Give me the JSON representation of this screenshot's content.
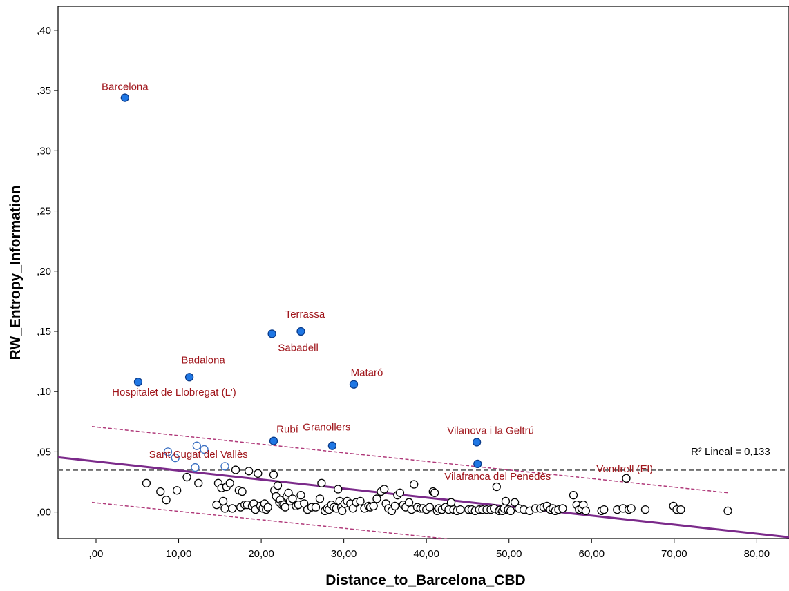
{
  "chart_data": {
    "type": "scatter",
    "xlabel": "Distance_to_Barcelona_CBD",
    "ylabel": "RW_Entropy_Information",
    "xlim": [
      -4.6,
      83.9
    ],
    "ylim": [
      -0.022,
      0.42
    ],
    "x_ticks": [
      {
        "value": 0,
        "label": ",00"
      },
      {
        "value": 10,
        "label": "10,00"
      },
      {
        "value": 20,
        "label": "20,00"
      },
      {
        "value": 30,
        "label": "30,00"
      },
      {
        "value": 40,
        "label": "40,00"
      },
      {
        "value": 50,
        "label": "50,00"
      },
      {
        "value": 60,
        "label": "60,00"
      },
      {
        "value": 70,
        "label": "70,00"
      },
      {
        "value": 80,
        "label": "80,00"
      }
    ],
    "y_ticks": [
      {
        "value": 0.0,
        "label": ",00"
      },
      {
        "value": 0.05,
        "label": ",05"
      },
      {
        "value": 0.1,
        "label": ",10"
      },
      {
        "value": 0.15,
        "label": ",15"
      },
      {
        "value": 0.2,
        "label": ",20"
      },
      {
        "value": 0.25,
        "label": ",25"
      },
      {
        "value": 0.3,
        "label": ",30"
      },
      {
        "value": 0.35,
        "label": ",35"
      },
      {
        "value": 0.4,
        "label": ",40"
      }
    ],
    "grid": false,
    "highlighted_points": [
      {
        "name": "Barcelona",
        "x": 3.5,
        "y": 0.344
      },
      {
        "name": "Hospitalet de Llobregat (L')",
        "x": 5.1,
        "y": 0.108
      },
      {
        "name": "Badalona",
        "x": 11.3,
        "y": 0.112
      },
      {
        "name": "Sabadell",
        "x": 21.3,
        "y": 0.148
      },
      {
        "name": "Terrassa",
        "x": 24.8,
        "y": 0.15
      },
      {
        "name": "Mataró",
        "x": 31.2,
        "y": 0.106
      },
      {
        "name": "Rubí",
        "x": 21.5,
        "y": 0.059
      },
      {
        "name": "Granollers",
        "x": 28.6,
        "y": 0.055
      },
      {
        "name": "Vilanova i la Geltrú",
        "x": 46.1,
        "y": 0.058
      },
      {
        "name": "Vilafranca del Penedès",
        "x": 46.2,
        "y": 0.04
      }
    ],
    "secondary_points": [
      {
        "x": 8.7,
        "y": 0.05
      },
      {
        "x": 9.6,
        "y": 0.045
      },
      {
        "x": 12.0,
        "y": 0.037
      },
      {
        "x": 12.2,
        "y": 0.055
      },
      {
        "x": 13.1,
        "y": 0.052
      },
      {
        "x": 15.6,
        "y": 0.038
      }
    ],
    "secondary_labels": [
      {
        "text": "Sant Cugat del Vallès",
        "x": 12.4,
        "y": 0.045
      },
      {
        "text": "Vendrell (El)",
        "x": 64.0,
        "y": 0.033
      }
    ],
    "other_points": [
      [
        6.1,
        0.024
      ],
      [
        7.8,
        0.017
      ],
      [
        8.5,
        0.01
      ],
      [
        9.8,
        0.018
      ],
      [
        11.0,
        0.029
      ],
      [
        12.4,
        0.024
      ],
      [
        14.6,
        0.006
      ],
      [
        14.8,
        0.024
      ],
      [
        15.2,
        0.02
      ],
      [
        15.4,
        0.009
      ],
      [
        15.6,
        0.003
      ],
      [
        15.8,
        0.021
      ],
      [
        16.2,
        0.024
      ],
      [
        16.5,
        0.003
      ],
      [
        16.9,
        0.035
      ],
      [
        17.3,
        0.018
      ],
      [
        17.5,
        0.004
      ],
      [
        17.7,
        0.017
      ],
      [
        18.0,
        0.006
      ],
      [
        18.3,
        0.006
      ],
      [
        18.5,
        0.034
      ],
      [
        18.9,
        0.005
      ],
      [
        19.1,
        0.007
      ],
      [
        19.3,
        0.002
      ],
      [
        19.6,
        0.032
      ],
      [
        19.9,
        0.005
      ],
      [
        20.2,
        0.003
      ],
      [
        20.4,
        0.007
      ],
      [
        20.6,
        0.002
      ],
      [
        20.8,
        0.004
      ],
      [
        21.5,
        0.031
      ],
      [
        21.6,
        0.018
      ],
      [
        21.8,
        0.013
      ],
      [
        22.0,
        0.022
      ],
      [
        22.2,
        0.008
      ],
      [
        22.3,
        0.01
      ],
      [
        22.5,
        0.006
      ],
      [
        22.7,
        0.006
      ],
      [
        22.9,
        0.004
      ],
      [
        23.1,
        0.013
      ],
      [
        23.3,
        0.016
      ],
      [
        23.5,
        0.009
      ],
      [
        23.8,
        0.011
      ],
      [
        24.2,
        0.005
      ],
      [
        24.5,
        0.006
      ],
      [
        24.8,
        0.014
      ],
      [
        25.2,
        0.007
      ],
      [
        25.6,
        0.002
      ],
      [
        26.1,
        0.004
      ],
      [
        26.6,
        0.004
      ],
      [
        27.1,
        0.011
      ],
      [
        27.3,
        0.024
      ],
      [
        27.7,
        0.001
      ],
      [
        28.0,
        0.003
      ],
      [
        28.2,
        0.002
      ],
      [
        28.5,
        0.006
      ],
      [
        28.8,
        0.004
      ],
      [
        29.1,
        0.003
      ],
      [
        29.3,
        0.019
      ],
      [
        29.5,
        0.009
      ],
      [
        29.7,
        0.004
      ],
      [
        29.8,
        0.001
      ],
      [
        30.1,
        0.007
      ],
      [
        30.4,
        0.009
      ],
      [
        30.8,
        0.007
      ],
      [
        31.1,
        0.003
      ],
      [
        31.5,
        0.008
      ],
      [
        32.0,
        0.009
      ],
      [
        32.5,
        0.003
      ],
      [
        33.0,
        0.005
      ],
      [
        33.2,
        0.004
      ],
      [
        33.6,
        0.005
      ],
      [
        34.0,
        0.011
      ],
      [
        34.5,
        0.017
      ],
      [
        34.9,
        0.019
      ],
      [
        35.1,
        0.007
      ],
      [
        35.4,
        0.003
      ],
      [
        35.8,
        0.001
      ],
      [
        36.2,
        0.005
      ],
      [
        36.5,
        0.014
      ],
      [
        36.8,
        0.016
      ],
      [
        37.2,
        0.006
      ],
      [
        37.5,
        0.004
      ],
      [
        37.9,
        0.008
      ],
      [
        38.2,
        0.002
      ],
      [
        38.5,
        0.023
      ],
      [
        38.9,
        0.004
      ],
      [
        39.3,
        0.003
      ],
      [
        39.6,
        0.003
      ],
      [
        40.0,
        0.002
      ],
      [
        40.4,
        0.004
      ],
      [
        40.8,
        0.017
      ],
      [
        41.0,
        0.016
      ],
      [
        41.3,
        0.001
      ],
      [
        41.5,
        0.003
      ],
      [
        41.9,
        0.002
      ],
      [
        42.3,
        0.004
      ],
      [
        42.7,
        0.002
      ],
      [
        43.0,
        0.008
      ],
      [
        43.3,
        0.002
      ],
      [
        43.7,
        0.001
      ],
      [
        44.1,
        0.002
      ],
      [
        45.1,
        0.002
      ],
      [
        45.5,
        0.002
      ],
      [
        45.9,
        0.001
      ],
      [
        46.4,
        0.002
      ],
      [
        46.8,
        0.002
      ],
      [
        47.3,
        0.002
      ],
      [
        47.8,
        0.002
      ],
      [
        48.2,
        0.003
      ],
      [
        48.5,
        0.021
      ],
      [
        48.8,
        0.001
      ],
      [
        49.0,
        0.002
      ],
      [
        49.2,
        0.001
      ],
      [
        49.4,
        0.003
      ],
      [
        49.6,
        0.009
      ],
      [
        49.9,
        0.002
      ],
      [
        50.2,
        0.001
      ],
      [
        50.7,
        0.008
      ],
      [
        51.2,
        0.003
      ],
      [
        51.8,
        0.002
      ],
      [
        52.5,
        0.001
      ],
      [
        53.2,
        0.003
      ],
      [
        53.8,
        0.003
      ],
      [
        54.2,
        0.004
      ],
      [
        54.6,
        0.005
      ],
      [
        55.0,
        0.002
      ],
      [
        55.3,
        0.003
      ],
      [
        55.6,
        0.001
      ],
      [
        56.0,
        0.002
      ],
      [
        56.5,
        0.003
      ],
      [
        57.8,
        0.014
      ],
      [
        58.2,
        0.006
      ],
      [
        58.5,
        0.002
      ],
      [
        58.8,
        0.003
      ],
      [
        59.0,
        0.006
      ],
      [
        59.3,
        0.001
      ],
      [
        61.2,
        0.001
      ],
      [
        61.5,
        0.002
      ],
      [
        63.1,
        0.002
      ],
      [
        63.8,
        0.003
      ],
      [
        64.5,
        0.002
      ],
      [
        64.8,
        0.003
      ],
      [
        66.5,
        0.002
      ],
      [
        69.9,
        0.005
      ],
      [
        70.3,
        0.002
      ],
      [
        70.8,
        0.002
      ],
      [
        76.5,
        0.001
      ],
      [
        64.2,
        0.028
      ]
    ],
    "regression": {
      "label": "R² Lineal = 0,133",
      "intercept": 0.042,
      "slope": -0.00075,
      "color": "#7b2a8a"
    },
    "confidence_band": {
      "upper_x": [
        -0.5,
        76.5
      ],
      "upper_y": [
        0.071,
        0.016
      ],
      "lower_x": [
        -0.5,
        43.5
      ],
      "lower_y": [
        0.008,
        -0.023
      ],
      "color": "#b03a7a"
    },
    "reference_line": {
      "y": 0.035,
      "color": "#707070"
    },
    "colors": {
      "highlight_fill": "#1f77e4",
      "highlight_stroke": "#0a3b8a",
      "secondary_stroke": "#3a6fc2",
      "label": "#a0161c",
      "point_stroke": "#000000"
    }
  }
}
